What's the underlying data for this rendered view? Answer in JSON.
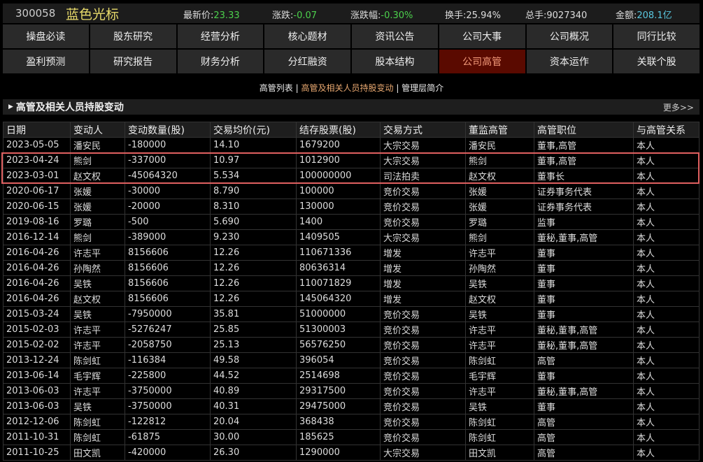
{
  "stock": {
    "code": "300058",
    "name": "蓝色光标",
    "quotes": [
      {
        "label": "最新价:",
        "value": "23.33",
        "color": "green"
      },
      {
        "label": "涨跌:",
        "value": "-0.07",
        "color": "green"
      },
      {
        "label": "涨跌幅:",
        "value": "-0.30%",
        "color": "green"
      },
      {
        "label": "换手:",
        "value": "25.94%",
        "color": "white"
      },
      {
        "label": "总手:",
        "value": "9027340",
        "color": "white"
      },
      {
        "label": "金额:",
        "value": "208.1亿",
        "color": "blue"
      }
    ]
  },
  "nav_row1": [
    "操盘必读",
    "股东研究",
    "经营分析",
    "核心题材",
    "资讯公告",
    "公司大事",
    "公司概况",
    "同行比较"
  ],
  "nav_row2": [
    "盈利预测",
    "研究报告",
    "财务分析",
    "分红融资",
    "股本结构",
    "公司高管",
    "资本运作",
    "关联个股"
  ],
  "active_nav": "公司高管",
  "subnav": [
    "高管列表",
    "高管及相关人员持股变动",
    "管理层简介"
  ],
  "active_subnav": "高管及相关人员持股变动",
  "section": {
    "title": "高管及相关人员持股变动",
    "more": "更多>>"
  },
  "colors": {
    "accent_active": "#5a0a00",
    "highlight_border": "#e06060",
    "up_down": "#4cd04c"
  },
  "table": {
    "headers": [
      "日期",
      "变动人",
      "变动数量(股)",
      "交易均价(元)",
      "结存股票(股)",
      "交易方式",
      "董监高管",
      "高管职位",
      "与高管关系"
    ],
    "rows": [
      [
        "2023-05-05",
        "潘安民",
        "-180000",
        "14.10",
        "1679200",
        "大宗交易",
        "潘安民",
        "董事,高管",
        "本人"
      ],
      [
        "2023-04-24",
        "熊剑",
        "-337000",
        "10.97",
        "1012900",
        "大宗交易",
        "熊剑",
        "董事,高管",
        "本人"
      ],
      [
        "2023-03-01",
        "赵文权",
        "-45064320",
        "5.534",
        "100000000",
        "司法拍卖",
        "赵文权",
        "董事长",
        "本人"
      ],
      [
        "2020-06-17",
        "张媛",
        "-30000",
        "8.790",
        "100000",
        "竞价交易",
        "张媛",
        "证券事务代表",
        "本人"
      ],
      [
        "2020-06-15",
        "张媛",
        "-20000",
        "8.310",
        "130000",
        "竞价交易",
        "张媛",
        "证券事务代表",
        "本人"
      ],
      [
        "2019-08-16",
        "罗璐",
        "-500",
        "5.690",
        "1400",
        "竞价交易",
        "罗璐",
        "监事",
        "本人"
      ],
      [
        "2016-12-14",
        "熊剑",
        "-389000",
        "9.230",
        "1409505",
        "大宗交易",
        "熊剑",
        "董秘,董事,高管",
        "本人"
      ],
      [
        "2016-04-26",
        "许志平",
        "8156606",
        "12.26",
        "110671336",
        "增发",
        "许志平",
        "董事",
        "本人"
      ],
      [
        "2016-04-26",
        "孙陶然",
        "8156606",
        "12.26",
        "80636314",
        "增发",
        "孙陶然",
        "董事",
        "本人"
      ],
      [
        "2016-04-26",
        "吴铁",
        "8156606",
        "12.26",
        "110071829",
        "增发",
        "吴铁",
        "董事",
        "本人"
      ],
      [
        "2016-04-26",
        "赵文权",
        "8156606",
        "12.26",
        "145064320",
        "增发",
        "赵文权",
        "董事",
        "本人"
      ],
      [
        "2015-03-24",
        "吴铁",
        "-7950000",
        "35.81",
        "51000000",
        "竞价交易",
        "吴铁",
        "董事",
        "本人"
      ],
      [
        "2015-02-03",
        "许志平",
        "-5276247",
        "25.85",
        "51300003",
        "竞价交易",
        "许志平",
        "董秘,董事,高管",
        "本人"
      ],
      [
        "2015-02-02",
        "许志平",
        "-2058750",
        "25.13",
        "56576250",
        "竞价交易",
        "许志平",
        "董秘,董事,高管",
        "本人"
      ],
      [
        "2013-12-24",
        "陈剑虹",
        "-116384",
        "49.58",
        "396054",
        "竞价交易",
        "陈剑虹",
        "高管",
        "本人"
      ],
      [
        "2013-06-14",
        "毛宇辉",
        "-225800",
        "44.52",
        "2514698",
        "竞价交易",
        "毛宇辉",
        "董事",
        "本人"
      ],
      [
        "2013-06-03",
        "许志平",
        "-3750000",
        "40.89",
        "29317500",
        "竞价交易",
        "许志平",
        "董秘,董事,高管",
        "本人"
      ],
      [
        "2013-06-03",
        "吴铁",
        "-3750000",
        "40.31",
        "29475000",
        "竞价交易",
        "吴铁",
        "董事",
        "本人"
      ],
      [
        "2012-12-06",
        "陈剑虹",
        "-122812",
        "20.04",
        "368438",
        "竞价交易",
        "陈剑虹",
        "高管",
        "本人"
      ],
      [
        "2011-10-31",
        "陈剑虹",
        "-61875",
        "30.00",
        "185625",
        "竞价交易",
        "陈剑虹",
        "高管",
        "本人"
      ],
      [
        "2011-10-25",
        "田文凯",
        "-420000",
        "26.30",
        "1290000",
        "大宗交易",
        "田文凯",
        "高管",
        "本人"
      ]
    ]
  }
}
